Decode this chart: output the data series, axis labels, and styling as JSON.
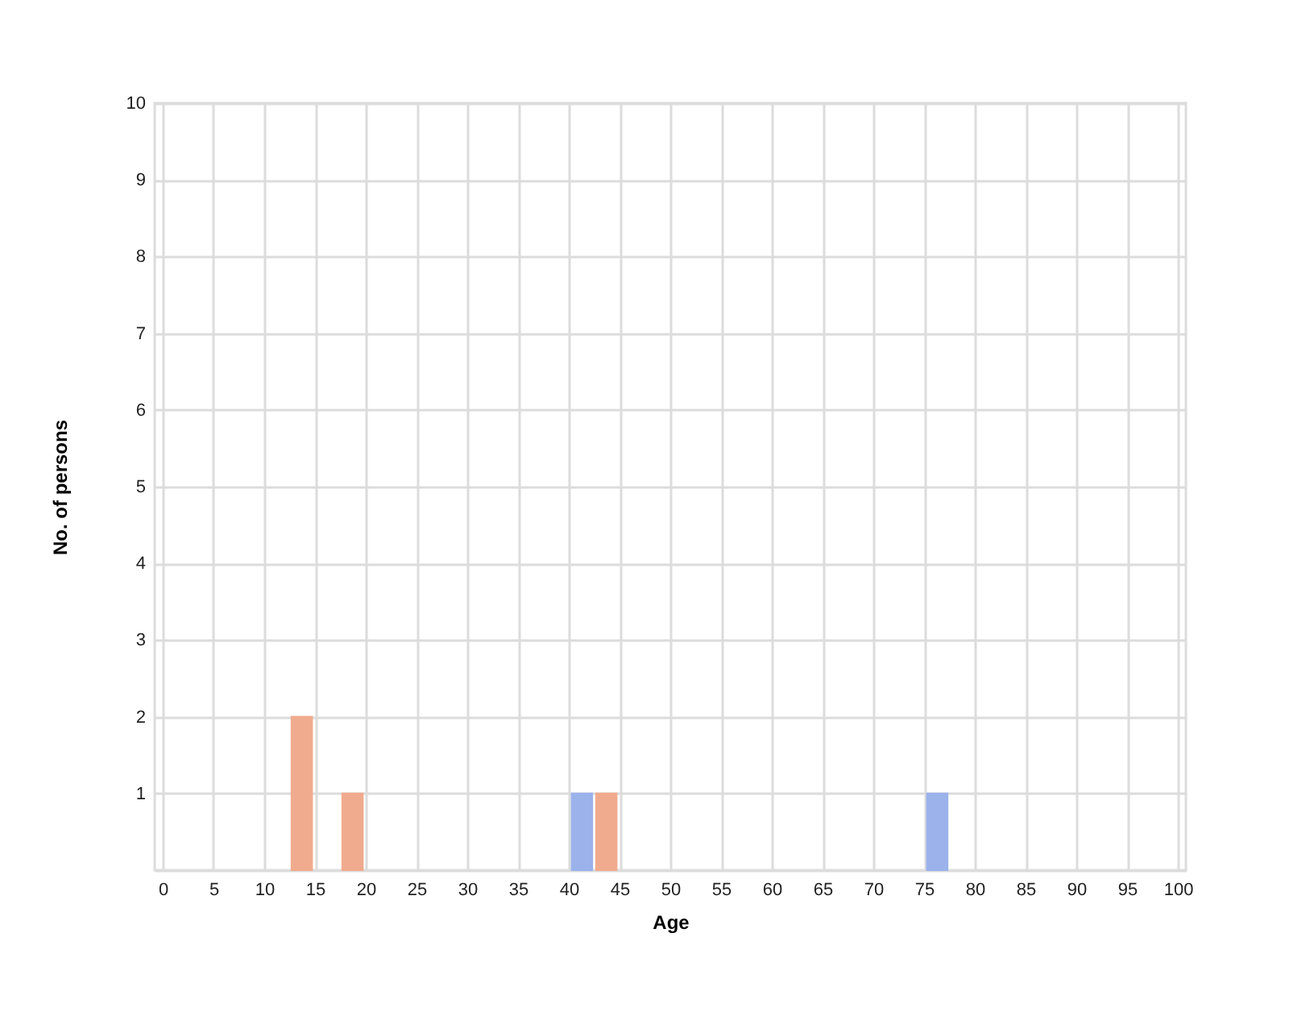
{
  "chart_data": {
    "type": "bar",
    "xlabel": "Age",
    "ylabel": "No. of persons",
    "series": [
      {
        "color": "#f0ab8e",
        "x": [
          13.7,
          18.7,
          43.7
        ],
        "values": [
          2,
          1,
          1
        ]
      },
      {
        "color": "#9bb2ea",
        "x": [
          41.3,
          76.3
        ],
        "values": [
          1,
          1
        ]
      }
    ],
    "xlim": [
      0,
      100
    ],
    "xticks": [
      0,
      5,
      10,
      15,
      20,
      25,
      30,
      35,
      40,
      45,
      50,
      55,
      60,
      65,
      70,
      75,
      80,
      85,
      90,
      95,
      100
    ],
    "ylim": [
      0,
      10
    ],
    "yticks": [
      {
        "value": 0,
        "label": null
      },
      1,
      2,
      3,
      4,
      5,
      6,
      7,
      8,
      9,
      10
    ],
    "grid": true
  }
}
